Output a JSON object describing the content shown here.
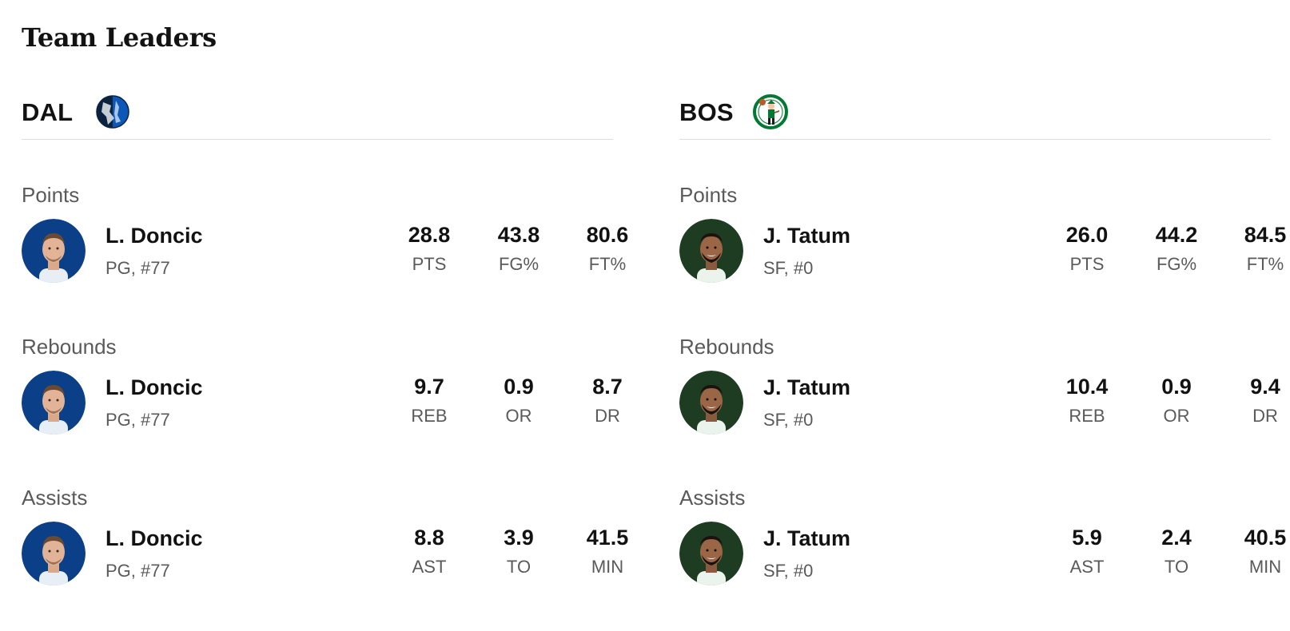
{
  "page": {
    "title": "Team Leaders"
  },
  "teams": [
    {
      "abbr": "DAL",
      "logo_icon": "mavericks-logo-icon",
      "accent_color": "#0b3f88",
      "categories": [
        {
          "title": "Points",
          "player": {
            "name": "L. Doncic",
            "meta": "PG, #77",
            "avatar_icon": "player-photo-icon"
          },
          "stats": [
            {
              "value": "28.8",
              "label": "PTS"
            },
            {
              "value": "43.8",
              "label": "FG%"
            },
            {
              "value": "80.6",
              "label": "FT%"
            }
          ]
        },
        {
          "title": "Rebounds",
          "player": {
            "name": "L. Doncic",
            "meta": "PG, #77",
            "avatar_icon": "player-photo-icon"
          },
          "stats": [
            {
              "value": "9.7",
              "label": "REB"
            },
            {
              "value": "0.9",
              "label": "OR"
            },
            {
              "value": "8.7",
              "label": "DR"
            }
          ]
        },
        {
          "title": "Assists",
          "player": {
            "name": "L. Doncic",
            "meta": "PG, #77",
            "avatar_icon": "player-photo-icon"
          },
          "stats": [
            {
              "value": "8.8",
              "label": "AST"
            },
            {
              "value": "3.9",
              "label": "TO"
            },
            {
              "value": "41.5",
              "label": "MIN"
            }
          ]
        }
      ]
    },
    {
      "abbr": "BOS",
      "logo_icon": "celtics-logo-icon",
      "accent_color": "#1d3c22",
      "categories": [
        {
          "title": "Points",
          "player": {
            "name": "J. Tatum",
            "meta": "SF, #0",
            "avatar_icon": "player-photo-icon"
          },
          "stats": [
            {
              "value": "26.0",
              "label": "PTS"
            },
            {
              "value": "44.2",
              "label": "FG%"
            },
            {
              "value": "84.5",
              "label": "FT%"
            }
          ]
        },
        {
          "title": "Rebounds",
          "player": {
            "name": "J. Tatum",
            "meta": "SF, #0",
            "avatar_icon": "player-photo-icon"
          },
          "stats": [
            {
              "value": "10.4",
              "label": "REB"
            },
            {
              "value": "0.9",
              "label": "OR"
            },
            {
              "value": "9.4",
              "label": "DR"
            }
          ]
        },
        {
          "title": "Assists",
          "player": {
            "name": "J. Tatum",
            "meta": "SF, #0",
            "avatar_icon": "player-photo-icon"
          },
          "stats": [
            {
              "value": "5.9",
              "label": "AST"
            },
            {
              "value": "2.4",
              "label": "TO"
            },
            {
              "value": "40.5",
              "label": "MIN"
            }
          ]
        }
      ]
    }
  ]
}
